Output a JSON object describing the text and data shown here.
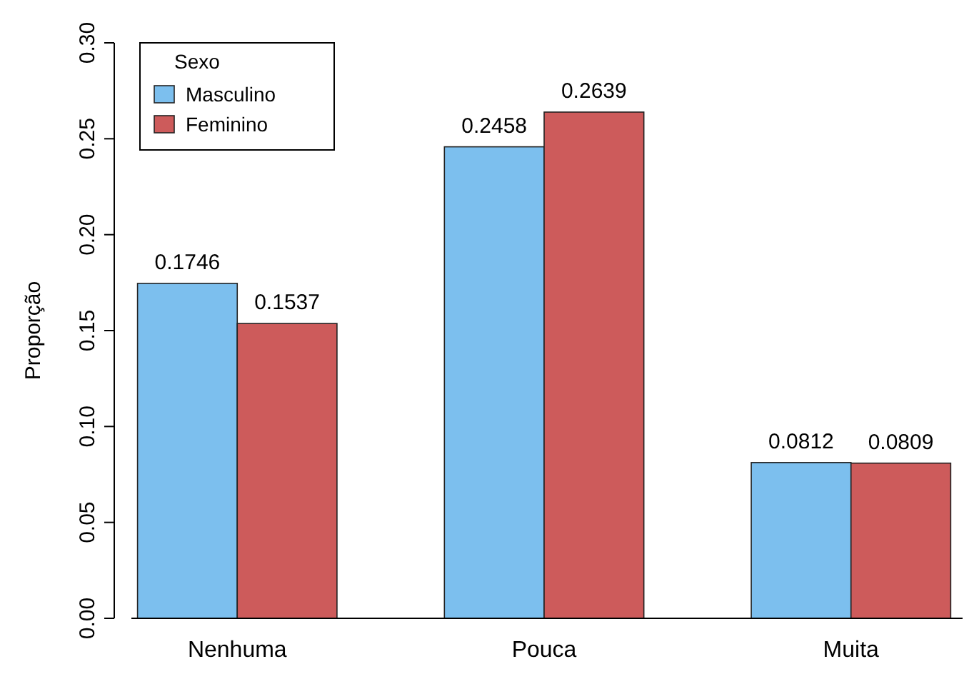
{
  "chart_data": {
    "type": "bar",
    "ylabel": "Proporção",
    "legend_title": "Sexo",
    "categories": [
      "Nenhuma",
      "Pouca",
      "Muita"
    ],
    "series": [
      {
        "name": "Masculino",
        "color": "#7cbfee",
        "values": [
          0.1746,
          0.2458,
          0.0812
        ]
      },
      {
        "name": "Feminino",
        "color": "#cd5b5b",
        "values": [
          0.1537,
          0.2639,
          0.0809
        ]
      }
    ],
    "ylim": [
      0,
      0.3
    ],
    "yticks": [
      {
        "value": 0,
        "label": "0.00"
      },
      {
        "value": 0.05,
        "label": "0.05"
      },
      {
        "value": 0.1,
        "label": "0.10"
      },
      {
        "value": 0.15,
        "label": "0.15"
      },
      {
        "value": 0.2,
        "label": "0.20"
      },
      {
        "value": 0.25,
        "label": "0.25"
      },
      {
        "value": 0.3,
        "label": "0.30"
      }
    ],
    "data_labels": true,
    "legend": "top left",
    "grid": false
  }
}
